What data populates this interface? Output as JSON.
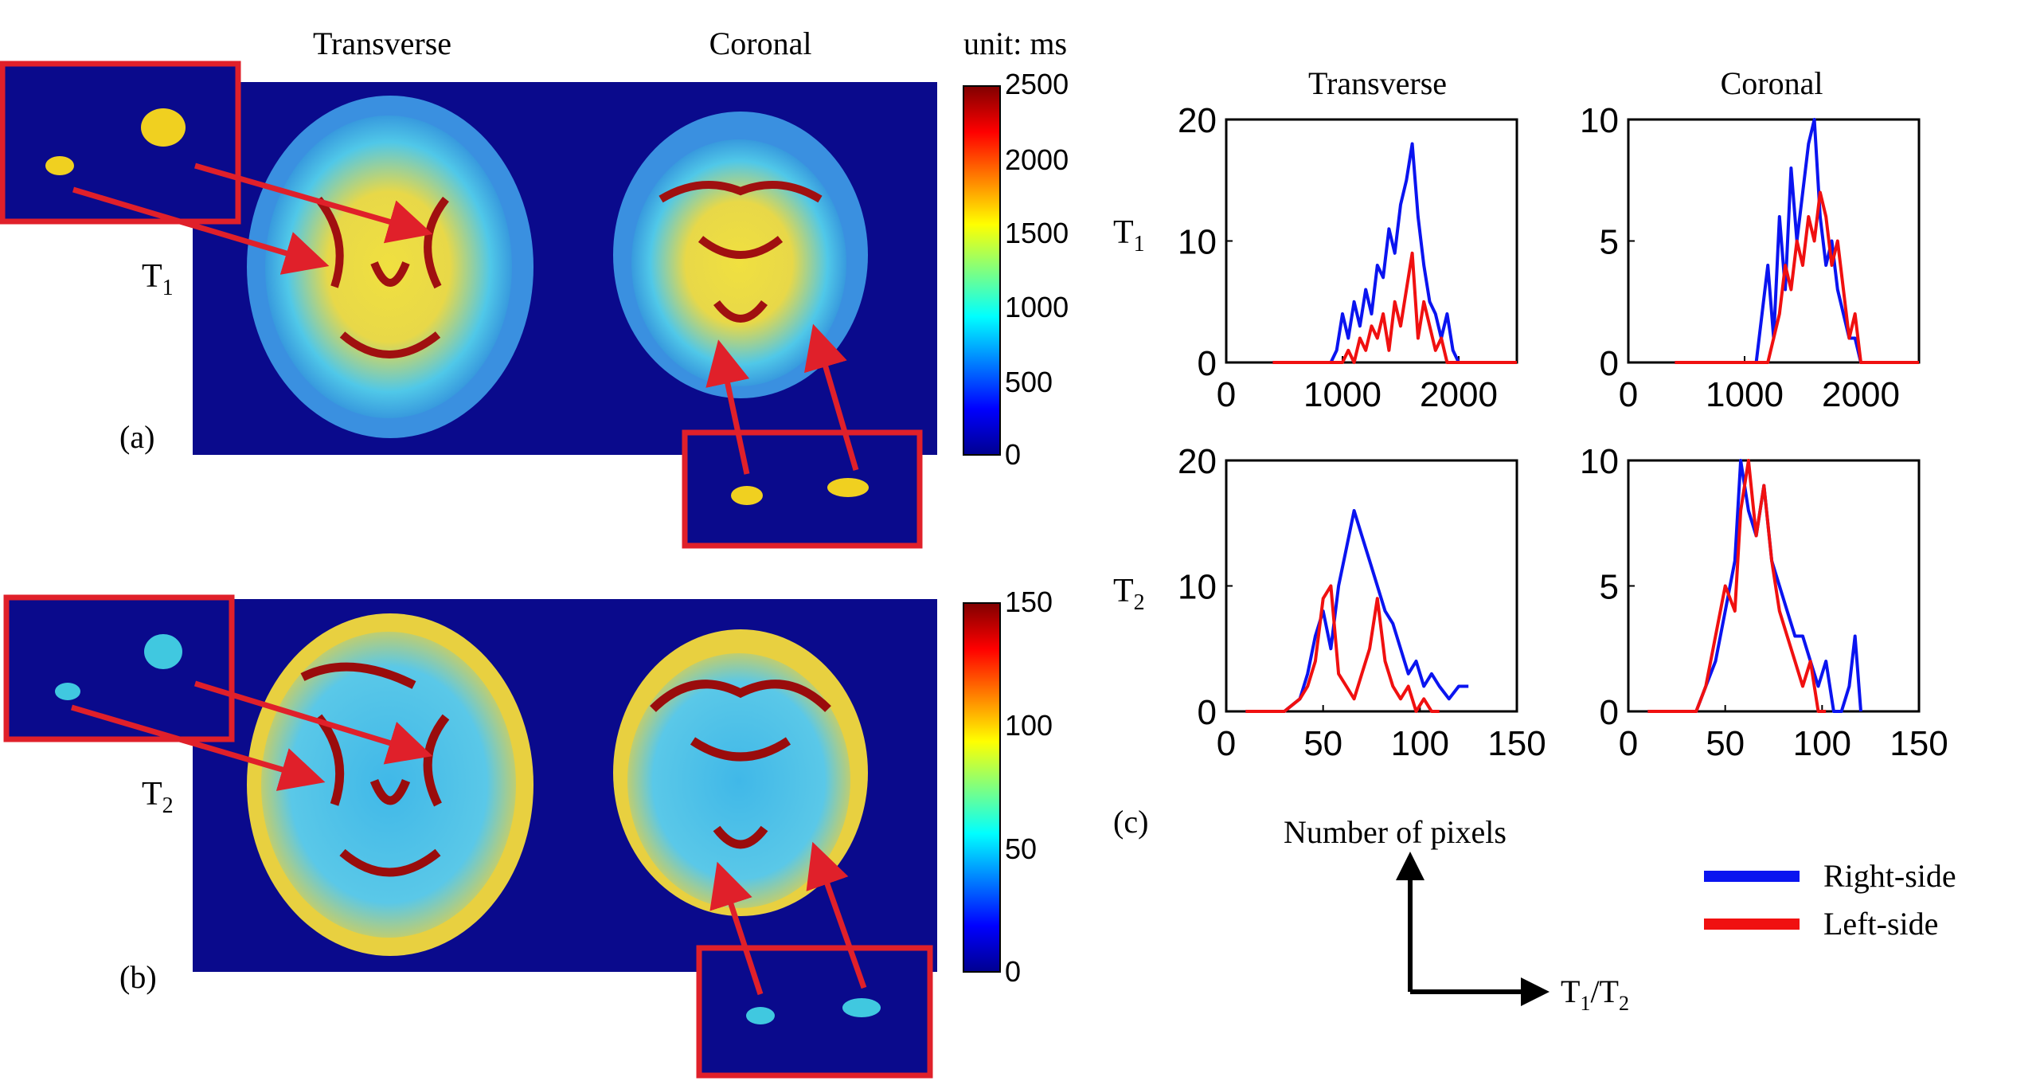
{
  "figure": {
    "col_transverse": "Transverse",
    "col_coronal": "Coronal",
    "unit_label": "unit: ms",
    "row_labels": {
      "t1": "T",
      "t1_sub": "1",
      "t2": "T",
      "t2_sub": "2"
    },
    "panel_labels": {
      "a": "(a)",
      "b": "(b)",
      "c": "(c)"
    },
    "colorbar_t1": {
      "ticks": [
        "2500",
        "2000",
        "1500",
        "1000",
        "500",
        "0"
      ]
    },
    "colorbar_t2": {
      "ticks": [
        "150",
        "100",
        "50",
        "0"
      ]
    },
    "hist_titles": {
      "transverse": "Transverse",
      "coronal": "Coronal"
    },
    "hist_row_labels": {
      "t1": "T",
      "t1_sub": "1",
      "t2": "T",
      "t2_sub": "2"
    },
    "axes_key": {
      "y_label": "Number of pixels",
      "x_label": "T",
      "x_sub1": "1",
      "x_slash": "/T",
      "x_sub2": "2"
    },
    "legend": [
      {
        "name": "Right-side",
        "color": "#0a14f0"
      },
      {
        "name": "Left-side",
        "color": "#f01010"
      }
    ],
    "colors": {
      "map_background": "#0a0a8c",
      "highlight_box": "#e0202a",
      "arrow": "#e0202a"
    }
  },
  "chart_data": [
    {
      "type": "line",
      "title": "Transverse",
      "row": "T1",
      "xlim": [
        0,
        2500
      ],
      "ylim": [
        0,
        20
      ],
      "xticks": [
        0,
        1000,
        2000
      ],
      "yticks": [
        0,
        10,
        20
      ],
      "series": [
        {
          "name": "Right-side",
          "x": [
            400,
            600,
            800,
            900,
            950,
            1000,
            1050,
            1100,
            1150,
            1200,
            1250,
            1300,
            1350,
            1400,
            1450,
            1500,
            1550,
            1600,
            1650,
            1700,
            1750,
            1800,
            1850,
            1900,
            1950,
            2000,
            2050,
            2500
          ],
          "y": [
            0,
            0,
            0,
            0,
            1,
            4,
            2,
            5,
            3,
            6,
            4,
            8,
            7,
            11,
            9,
            13,
            15,
            18,
            12,
            8,
            5,
            4,
            2,
            4,
            1,
            0,
            0,
            0
          ]
        },
        {
          "name": "Left-side",
          "x": [
            400,
            600,
            800,
            900,
            1000,
            1050,
            1100,
            1150,
            1200,
            1250,
            1300,
            1350,
            1400,
            1450,
            1500,
            1550,
            1600,
            1650,
            1700,
            1750,
            1800,
            1850,
            1900,
            2000,
            2500
          ],
          "y": [
            0,
            0,
            0,
            0,
            0,
            1,
            0,
            2,
            1,
            3,
            2,
            4,
            1,
            5,
            3,
            6,
            9,
            2,
            5,
            3,
            1,
            2,
            0,
            0,
            0
          ]
        }
      ]
    },
    {
      "type": "line",
      "title": "Coronal",
      "row": "T1",
      "xlim": [
        0,
        2500
      ],
      "ylim": [
        0,
        10
      ],
      "xticks": [
        0,
        1000,
        2000
      ],
      "yticks": [
        0,
        5,
        10
      ],
      "series": [
        {
          "name": "Right-side",
          "x": [
            400,
            800,
            1100,
            1150,
            1200,
            1250,
            1300,
            1350,
            1400,
            1450,
            1500,
            1550,
            1600,
            1650,
            1700,
            1750,
            1800,
            1850,
            1900,
            1950,
            2000,
            2500
          ],
          "y": [
            0,
            0,
            0,
            2,
            4,
            1,
            6,
            3,
            8,
            5,
            7,
            9,
            10,
            6,
            4,
            5,
            3,
            2,
            1,
            1,
            0,
            0
          ]
        },
        {
          "name": "Left-side",
          "x": [
            400,
            800,
            1200,
            1250,
            1300,
            1350,
            1400,
            1450,
            1500,
            1550,
            1600,
            1650,
            1700,
            1750,
            1800,
            1850,
            1900,
            1950,
            2000,
            2500
          ],
          "y": [
            0,
            0,
            0,
            1,
            2,
            4,
            3,
            5,
            4,
            6,
            5,
            7,
            6,
            4,
            5,
            3,
            1,
            2,
            0,
            0
          ]
        }
      ]
    },
    {
      "type": "line",
      "title": "",
      "row": "T2",
      "xlim": [
        0,
        150
      ],
      "ylim": [
        0,
        20
      ],
      "xticks": [
        0,
        50,
        100,
        150
      ],
      "yticks": [
        0,
        10,
        20
      ],
      "series": [
        {
          "name": "Right-side",
          "x": [
            10,
            30,
            38,
            42,
            46,
            50,
            54,
            58,
            62,
            66,
            70,
            74,
            78,
            82,
            86,
            90,
            94,
            98,
            102,
            106,
            110,
            115,
            120,
            125
          ],
          "y": [
            0,
            0,
            1,
            3,
            6,
            8,
            5,
            10,
            13,
            16,
            14,
            12,
            10,
            8,
            7,
            5,
            3,
            4,
            2,
            3,
            2,
            1,
            2,
            2
          ]
        },
        {
          "name": "Left-side",
          "x": [
            10,
            30,
            38,
            42,
            46,
            50,
            54,
            58,
            62,
            66,
            70,
            74,
            78,
            82,
            86,
            90,
            94,
            98,
            102,
            106,
            110
          ],
          "y": [
            0,
            0,
            1,
            2,
            4,
            9,
            10,
            3,
            2,
            1,
            3,
            5,
            9,
            4,
            2,
            1,
            2,
            0,
            1,
            0,
            0
          ]
        }
      ]
    },
    {
      "type": "line",
      "title": "",
      "row": "T2",
      "xlim": [
        0,
        150
      ],
      "ylim": [
        0,
        10
      ],
      "xticks": [
        0,
        50,
        100,
        150
      ],
      "yticks": [
        0,
        5,
        10
      ],
      "series": [
        {
          "name": "Right-side",
          "x": [
            10,
            35,
            40,
            45,
            50,
            55,
            58,
            62,
            66,
            70,
            74,
            78,
            82,
            86,
            90,
            94,
            98,
            102,
            106,
            110,
            114,
            117,
            120
          ],
          "y": [
            0,
            0,
            1,
            2,
            4,
            6,
            10,
            8,
            7,
            9,
            6,
            5,
            4,
            3,
            3,
            2,
            1,
            2,
            0,
            0,
            1,
            3,
            0
          ]
        },
        {
          "name": "Left-side",
          "x": [
            10,
            35,
            40,
            45,
            50,
            55,
            58,
            62,
            66,
            70,
            74,
            78,
            82,
            86,
            90,
            94,
            98,
            102
          ],
          "y": [
            0,
            0,
            1,
            3,
            5,
            4,
            8,
            10,
            7,
            9,
            6,
            4,
            3,
            2,
            1,
            2,
            0,
            0
          ]
        }
      ]
    }
  ]
}
